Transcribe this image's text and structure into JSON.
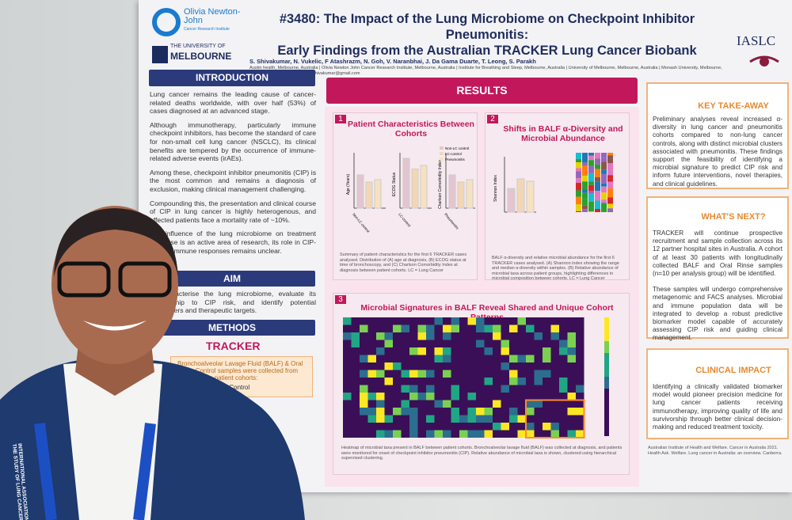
{
  "header": {
    "logo_onj": "Olivia Newton-John",
    "logo_onj_sub": "Cancer Research Institute",
    "logo_unimelb_top": "THE UNIVERSITY OF",
    "logo_unimelb": "MELBOURNE",
    "logo_iaslc": "IASLC",
    "title": [
      "#3480: The Impact of the Lung Microbiome on Checkpoint Inhibitor Pneumonitis:",
      "Early Findings from the Australian TRACKER Lung Cancer Biobank",
      ""
    ],
    "authors": "S. Shivakumar, N. Vukelic, F Atashrazm, N. Goh, V. Naranbhai, J. Da Gama Duarte, T. Leong, S. Parakh",
    "affiliations": "Austin health, Melbourne, Australia | Olivia Newton John Cancer Research Institute, Melbourne, Australia | Institute for Breathing and Sleep, Melbourne, Australia | University of Melbourne, Melbourne, Australia | Monash University, Melbourne, Australia | Correspondence: senshivakumar@gmail.com"
  },
  "intro": {
    "heading": "INTRODUCTION",
    "paragraphs": [
      "Lung cancer remains the leading cause of cancer-related deaths worldwide, with over half (53%) of cases diagnosed at an advanced stage.",
      "Although immunotherapy, particularly immune checkpoint inhibitors, has become the standard of care for non-small cell lung cancer (NSCLC), its clinical benefits are tempered by the occurrence of immune-related adverse events (irAEs).",
      "Among these, checkpoint inhibitor pneumonitis (CIP) is the most common and remains a diagnosis of exclusion, making clinical management challenging.",
      "Compounding this, the presentation and clinical course of CIP in lung cancer is highly heterogenous, and affected patients face a mortality rate of ~10%.",
      "The influence of the lung microbiome on treatment response is an active area of research, its role in CIP-related immune responses remains unclear."
    ]
  },
  "aim": {
    "heading": "AIM",
    "text": "To characterise the lung microbiome, evaluate its relationship to CIP risk, and identify potential biomarkers and therapeutic targets."
  },
  "methods": {
    "heading": "METHODS",
    "logo": "TRACKER",
    "box": "Bronchoalveolar Lavage Fluid (BALF) & Oral Rinse Control samples were collected from the following patient cohorts:",
    "item": "Non-Lung Cancer Control"
  },
  "results": {
    "heading": "RESULTS",
    "panels": [
      {
        "number": "1",
        "title": "Patient Characteristics Between Cohorts",
        "axes": [
          "Age (Years)",
          "ECOG Status",
          "Charlson Comorbidity Index"
        ],
        "legend": [
          "Non-LC control",
          "LC-control",
          "Pneumonitis"
        ],
        "caption": "Summary of patient characteristics for the first 6 TRACKER cases analysed. Distribution of (A) age at diagnosis, (B) ECOG status at time of bronchoscopy, and (C) Charlson Comorbidity Index at diagnosis between patient cohorts. LC = Lung Cancer"
      },
      {
        "number": "2",
        "title": "Shifts in BALF α-Diversity and Microbial Abundance",
        "axes": [
          "Shannon Index"
        ],
        "caption": "BALF α-diversity and relative microbial abundance for the first 6 TRACKER cases analysed. (A) Shannon index showing the range and median α-diversity within samples. (B) Relative abundance of microbial taxa across patient groups, highlighting differences in microbial composition between cohorts. LC = Lung Cancer"
      },
      {
        "number": "3",
        "title": "Microbial Signatures in BALF Reveal Shared and Unique Cohort Patterns",
        "caption": "Heatmap of microbial taxa present in BALF between patient cohorts. Bronchoalveolar lavage fluid (BALF) was collected at diagnosis, and patients were monitored for onset of checkpoint inhibitor pneumonitis (CIP). Relative abundance of microbial taxa is shown, clustered using hierarchical supervised clustering."
      }
    ]
  },
  "right": [
    {
      "heading": "KEY TAKE-AWAY",
      "text": "Preliminary analyses reveal increased α-diversity in lung cancer and pneumonitis cohorts compared to non-lung cancer controls, along with distinct microbial clusters associated with pneumonitis. These findings support the feasibility of identifying a microbial signature to predict CIP risk and inform future interventions, novel therapies, and clinical guidelines."
    },
    {
      "heading": "WHAT'S NEXT?",
      "text": "TRACKER will continue prospective recruitment and sample collection across its 12 partner hospital sites in Australia. A cohort of at least 30 patients with longitudinally collected BALF and Oral Rinse samples (n=10 per analysis group) will be identified.",
      "text2": "These samples will undergo comprehensive metagenomic and FACS analyses. Microbial and immune population data will be integrated to develop a robust predictive biomarker model capable of accurately assessing CIP risk and guiding clinical management."
    },
    {
      "heading": "CLINICAL IMPACT",
      "text": "Identifying a clinically validated biomarker model would pioneer precision medicine for lung cancer patients receiving immunotherapy, improving quality of life and survivorship through better clinical decision-making and reduced treatment toxicity."
    }
  ],
  "references": "Australian Institute of Health and Welfare. Cancer in Australia 2021. Health Ask. Welfare. Lung cancer in Australia: an overview. Canberra.",
  "lanyard": "INTERNATIONAL ASSOCIATION FOR THE STUDY OF LUNG CANCER"
}
